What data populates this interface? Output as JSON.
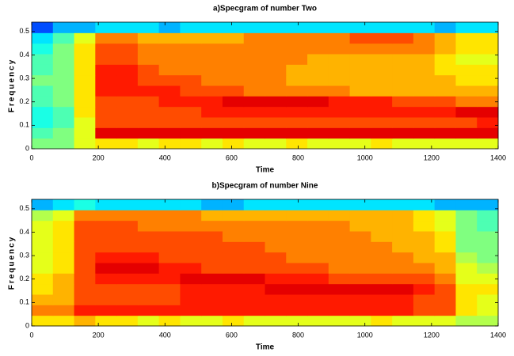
{
  "chart_data": [
    {
      "type": "heatmap",
      "title": "a)Specgram of number Two",
      "x_label": "Time",
      "y_label": "Frequency",
      "colormap": "jet",
      "xlim": [
        0,
        1400
      ],
      "ylim": [
        0,
        0.54
      ],
      "xticks": [
        0,
        200,
        400,
        600,
        800,
        1000,
        1200,
        1400
      ],
      "yticks": [
        0,
        0.1,
        0.2,
        0.3,
        0.4,
        0.5
      ],
      "z": [
        [
          0.5,
          0.5,
          0.6,
          0.65,
          0.65,
          0.6,
          0.65,
          0.65,
          0.6,
          0.65,
          0.6,
          0.6,
          0.65,
          0.6,
          0.6,
          0.6,
          0.65,
          0.6,
          0.6,
          0.6,
          0.6,
          0.6
        ],
        [
          0.45,
          0.5,
          0.6,
          0.9,
          0.9,
          0.9,
          0.9,
          0.9,
          0.9,
          0.9,
          0.9,
          0.9,
          0.9,
          0.9,
          0.9,
          0.9,
          0.9,
          0.9,
          0.9,
          0.9,
          0.9,
          0.9
        ],
        [
          0.4,
          0.45,
          0.6,
          0.8,
          0.8,
          0.8,
          0.8,
          0.8,
          0.8,
          0.8,
          0.8,
          0.8,
          0.8,
          0.8,
          0.8,
          0.8,
          0.8,
          0.8,
          0.8,
          0.8,
          0.8,
          0.85
        ],
        [
          0.4,
          0.45,
          0.65,
          0.8,
          0.8,
          0.8,
          0.8,
          0.8,
          0.85,
          0.85,
          0.85,
          0.85,
          0.85,
          0.85,
          0.85,
          0.85,
          0.85,
          0.85,
          0.85,
          0.85,
          0.9,
          0.9
        ],
        [
          0.45,
          0.5,
          0.65,
          0.8,
          0.8,
          0.8,
          0.85,
          0.85,
          0.85,
          0.9,
          0.9,
          0.9,
          0.9,
          0.9,
          0.85,
          0.85,
          0.85,
          0.8,
          0.8,
          0.8,
          0.75,
          0.75
        ],
        [
          0.45,
          0.5,
          0.65,
          0.85,
          0.85,
          0.85,
          0.85,
          0.8,
          0.8,
          0.8,
          0.75,
          0.75,
          0.75,
          0.75,
          0.75,
          0.7,
          0.7,
          0.7,
          0.7,
          0.7,
          0.7,
          0.7
        ],
        [
          0.5,
          0.5,
          0.65,
          0.85,
          0.85,
          0.8,
          0.8,
          0.8,
          0.75,
          0.75,
          0.75,
          0.75,
          0.7,
          0.7,
          0.7,
          0.7,
          0.7,
          0.7,
          0.7,
          0.7,
          0.65,
          0.65
        ],
        [
          0.45,
          0.5,
          0.65,
          0.85,
          0.85,
          0.8,
          0.75,
          0.75,
          0.75,
          0.75,
          0.75,
          0.75,
          0.7,
          0.7,
          0.7,
          0.7,
          0.7,
          0.7,
          0.7,
          0.65,
          0.65,
          0.65
        ],
        [
          0.45,
          0.5,
          0.65,
          0.8,
          0.8,
          0.75,
          0.75,
          0.75,
          0.75,
          0.75,
          0.75,
          0.75,
          0.75,
          0.7,
          0.7,
          0.7,
          0.7,
          0.7,
          0.7,
          0.65,
          0.6,
          0.6
        ],
        [
          0.4,
          0.5,
          0.65,
          0.8,
          0.8,
          0.75,
          0.75,
          0.75,
          0.75,
          0.75,
          0.75,
          0.75,
          0.75,
          0.75,
          0.75,
          0.75,
          0.75,
          0.75,
          0.75,
          0.7,
          0.65,
          0.65
        ],
        [
          0.35,
          0.45,
          0.6,
          0.75,
          0.75,
          0.7,
          0.7,
          0.7,
          0.7,
          0.7,
          0.75,
          0.75,
          0.75,
          0.75,
          0.75,
          0.8,
          0.8,
          0.8,
          0.75,
          0.7,
          0.65,
          0.65
        ],
        [
          0.2,
          0.3,
          0.3,
          0.35,
          0.35,
          0.35,
          0.3,
          0.35,
          0.35,
          0.35,
          0.35,
          0.35,
          0.35,
          0.35,
          0.35,
          0.35,
          0.35,
          0.35,
          0.35,
          0.3,
          0.35,
          0.35
        ]
      ]
    },
    {
      "type": "heatmap",
      "title": "b)Specgram of number Nine",
      "x_label": "Time",
      "y_label": "Frequency",
      "colormap": "jet",
      "xlim": [
        0,
        1400
      ],
      "ylim": [
        0,
        0.54
      ],
      "xticks": [
        0,
        200,
        400,
        600,
        800,
        1000,
        1200,
        1400
      ],
      "yticks": [
        0,
        0.1,
        0.2,
        0.3,
        0.4,
        0.5
      ],
      "z": [
        [
          0.65,
          0.65,
          0.7,
          0.65,
          0.65,
          0.6,
          0.65,
          0.6,
          0.6,
          0.65,
          0.6,
          0.6,
          0.6,
          0.6,
          0.6,
          0.6,
          0.65,
          0.6,
          0.6,
          0.6,
          0.55,
          0.55
        ],
        [
          0.75,
          0.75,
          0.85,
          0.85,
          0.85,
          0.85,
          0.85,
          0.85,
          0.85,
          0.85,
          0.85,
          0.85,
          0.85,
          0.85,
          0.85,
          0.85,
          0.85,
          0.85,
          0.8,
          0.8,
          0.65,
          0.6
        ],
        [
          0.7,
          0.7,
          0.8,
          0.8,
          0.8,
          0.8,
          0.8,
          0.85,
          0.85,
          0.85,
          0.85,
          0.85,
          0.85,
          0.85,
          0.85,
          0.85,
          0.85,
          0.85,
          0.8,
          0.8,
          0.65,
          0.6
        ],
        [
          0.65,
          0.7,
          0.8,
          0.8,
          0.8,
          0.8,
          0.8,
          0.85,
          0.85,
          0.85,
          0.85,
          0.9,
          0.9,
          0.9,
          0.9,
          0.9,
          0.9,
          0.9,
          0.85,
          0.8,
          0.65,
          0.65
        ],
        [
          0.65,
          0.7,
          0.8,
          0.85,
          0.85,
          0.85,
          0.85,
          0.9,
          0.9,
          0.9,
          0.9,
          0.85,
          0.85,
          0.85,
          0.8,
          0.8,
          0.8,
          0.8,
          0.8,
          0.75,
          0.6,
          0.6
        ],
        [
          0.6,
          0.65,
          0.8,
          0.9,
          0.9,
          0.9,
          0.85,
          0.85,
          0.8,
          0.8,
          0.8,
          0.8,
          0.8,
          0.8,
          0.75,
          0.75,
          0.75,
          0.75,
          0.75,
          0.7,
          0.6,
          0.55
        ],
        [
          0.6,
          0.65,
          0.8,
          0.85,
          0.85,
          0.85,
          0.8,
          0.8,
          0.8,
          0.8,
          0.8,
          0.8,
          0.75,
          0.75,
          0.75,
          0.75,
          0.75,
          0.75,
          0.7,
          0.7,
          0.55,
          0.5
        ],
        [
          0.6,
          0.65,
          0.8,
          0.8,
          0.8,
          0.8,
          0.8,
          0.8,
          0.8,
          0.8,
          0.8,
          0.75,
          0.75,
          0.75,
          0.75,
          0.75,
          0.75,
          0.7,
          0.7,
          0.65,
          0.5,
          0.5
        ],
        [
          0.6,
          0.65,
          0.8,
          0.8,
          0.8,
          0.8,
          0.8,
          0.8,
          0.8,
          0.75,
          0.75,
          0.75,
          0.75,
          0.75,
          0.75,
          0.75,
          0.7,
          0.7,
          0.7,
          0.65,
          0.5,
          0.5
        ],
        [
          0.6,
          0.65,
          0.8,
          0.8,
          0.8,
          0.75,
          0.75,
          0.75,
          0.75,
          0.75,
          0.75,
          0.75,
          0.75,
          0.75,
          0.75,
          0.7,
          0.7,
          0.7,
          0.65,
          0.6,
          0.5,
          0.45
        ],
        [
          0.55,
          0.6,
          0.75,
          0.75,
          0.75,
          0.75,
          0.75,
          0.75,
          0.7,
          0.7,
          0.7,
          0.7,
          0.7,
          0.7,
          0.7,
          0.7,
          0.7,
          0.7,
          0.65,
          0.6,
          0.5,
          0.45
        ],
        [
          0.3,
          0.35,
          0.4,
          0.35,
          0.35,
          0.35,
          0.35,
          0.35,
          0.3,
          0.3,
          0.35,
          0.35,
          0.35,
          0.35,
          0.35,
          0.35,
          0.35,
          0.35,
          0.35,
          0.3,
          0.3,
          0.3
        ]
      ]
    }
  ]
}
